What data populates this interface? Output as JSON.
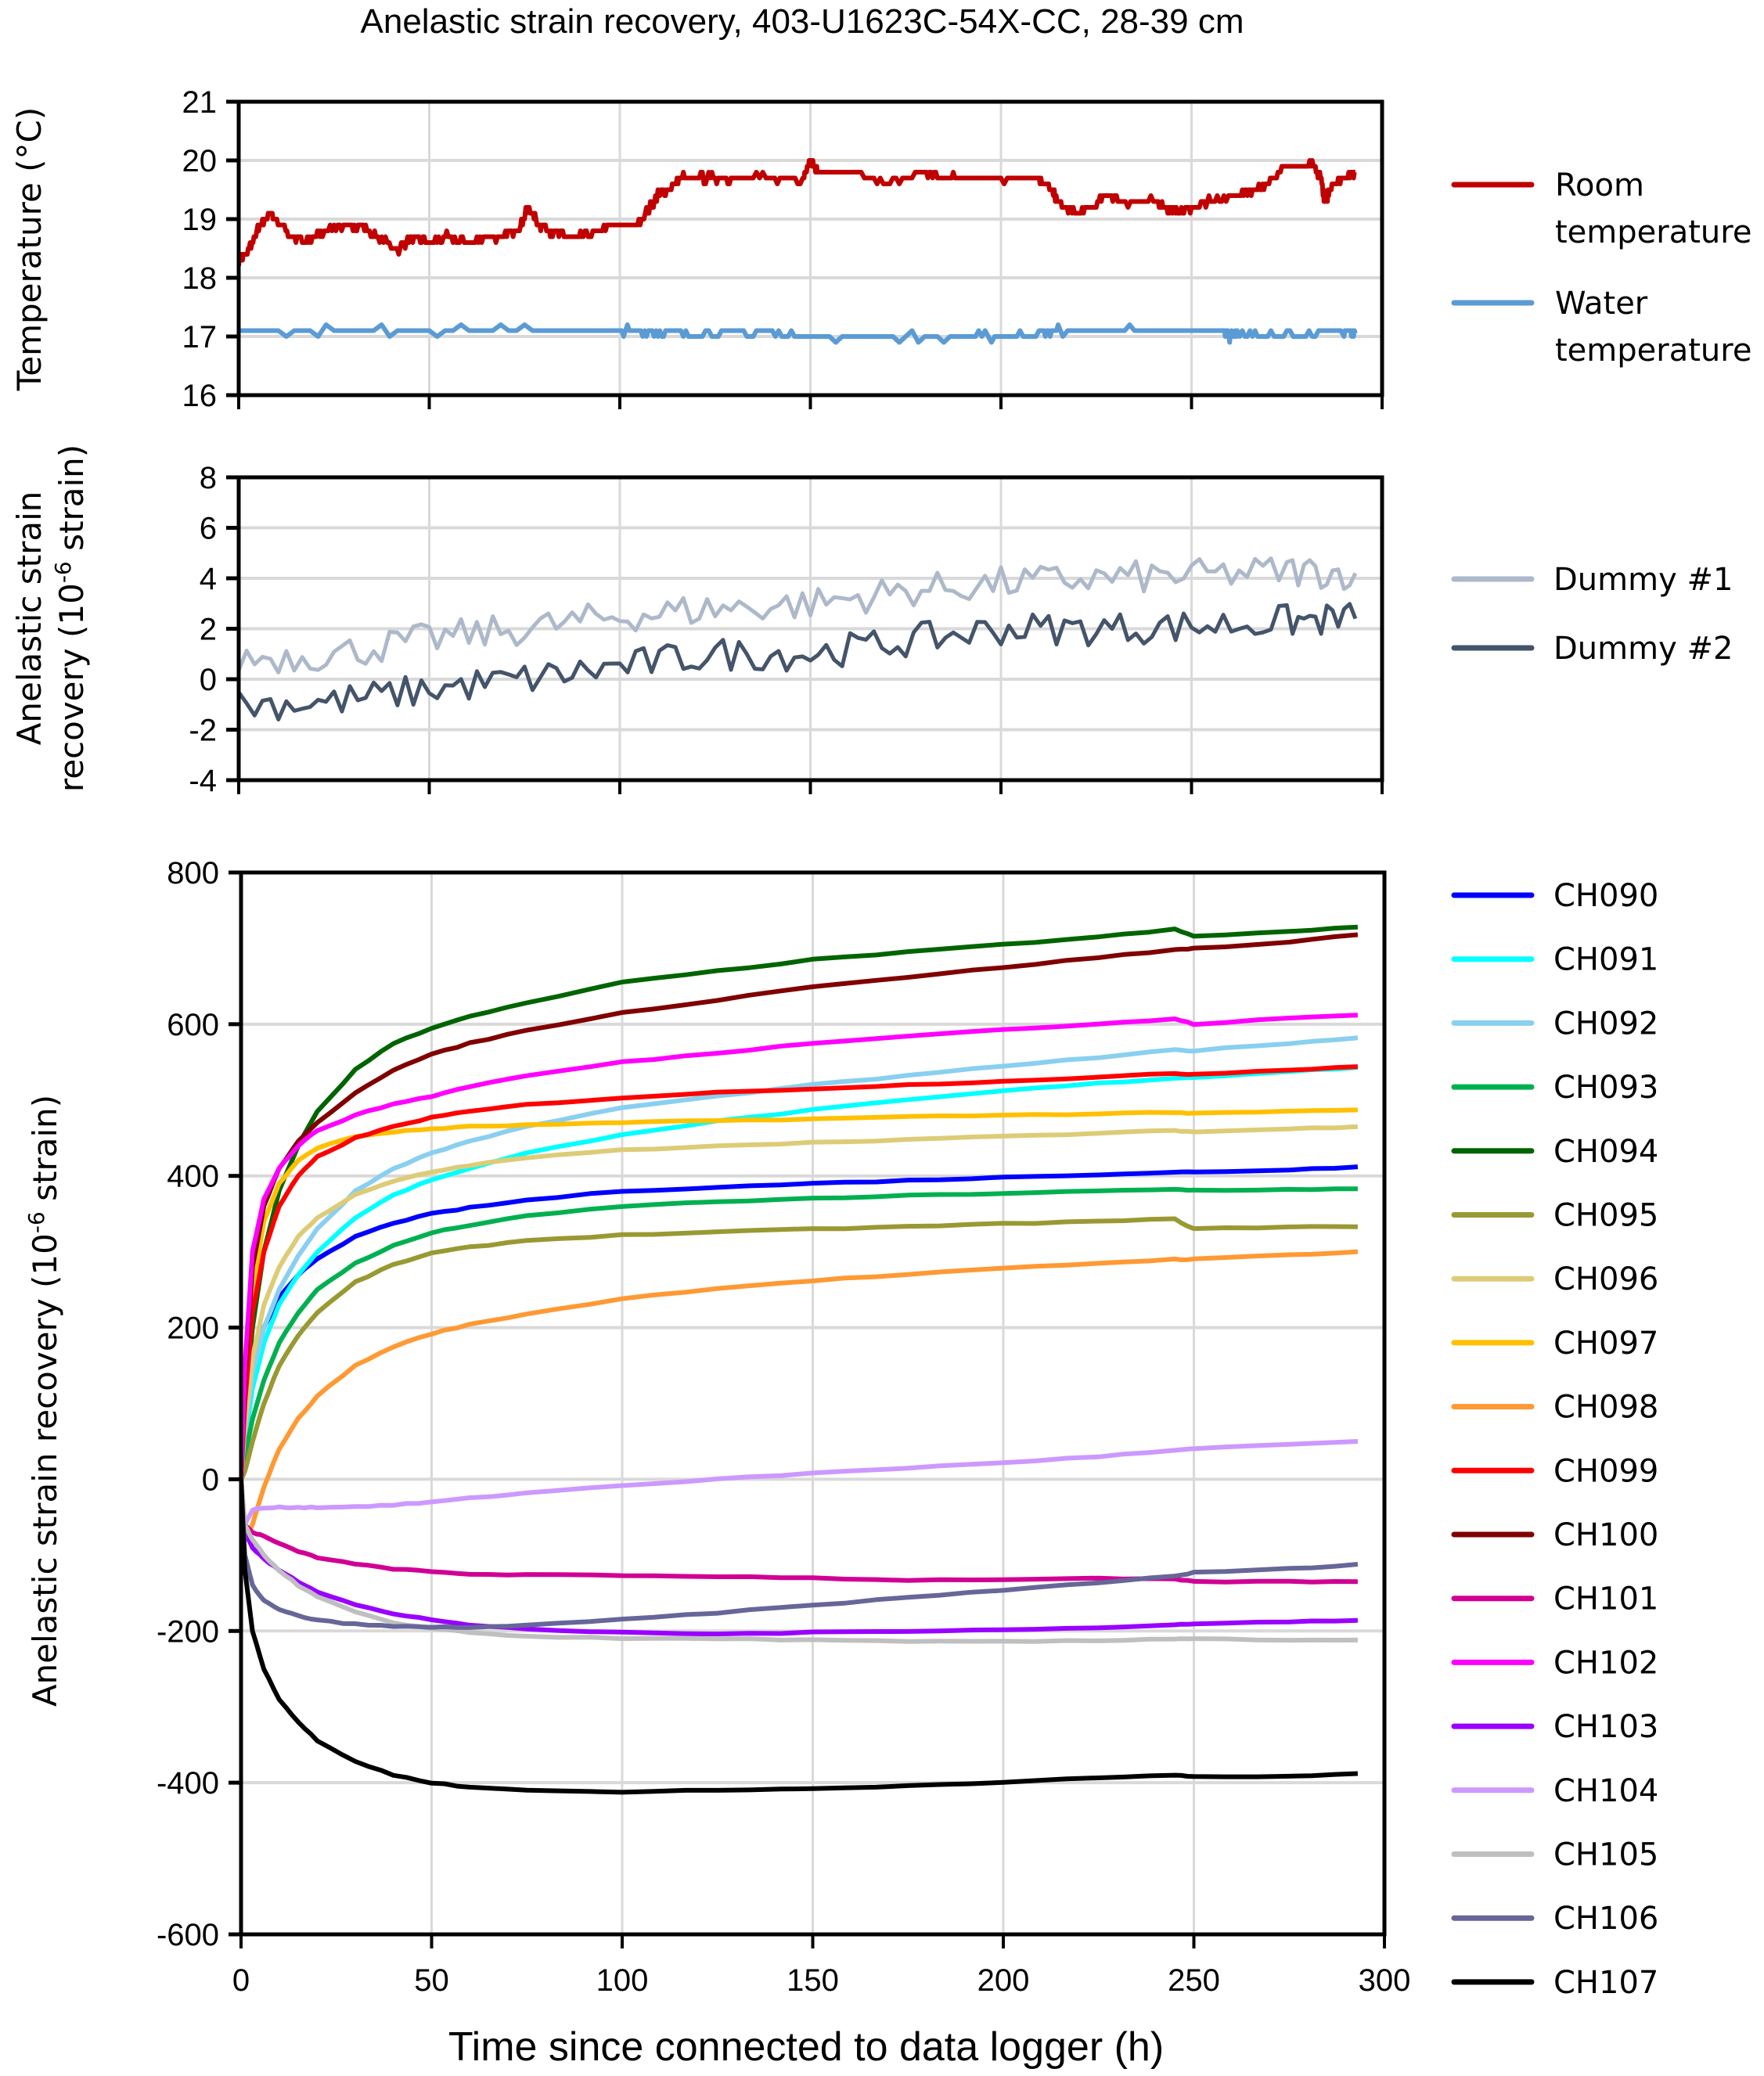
{
  "chart_data": [
    {
      "type": "line",
      "title": "Anelastic strain recovery, 403-U1623C-54X-CC, 28-39 cm",
      "xlabel": "",
      "ylabel": "Temperature (°C)",
      "xlim": [
        0,
        300
      ],
      "ylim": [
        16,
        21
      ],
      "xticks": [
        0,
        50,
        100,
        150,
        200,
        250,
        300
      ],
      "yticks": [
        "16",
        "17",
        "18",
        "19",
        "20",
        "21"
      ],
      "grid": true,
      "legend_position": "right",
      "series": [
        {
          "name": "Room temperature",
          "label_lines": [
            "Room",
            "temperature"
          ],
          "color": "#C00000",
          "x": [
            0,
            2,
            5,
            8,
            10,
            14,
            18,
            22,
            28,
            32,
            36,
            42,
            46,
            50,
            55,
            60,
            65,
            70,
            74,
            76,
            79,
            82,
            86,
            90,
            95,
            100,
            104,
            108,
            110,
            113,
            116,
            120,
            125,
            130,
            140,
            148,
            150,
            152,
            160,
            170,
            180,
            185,
            190,
            200,
            210,
            213,
            216,
            220,
            224,
            228,
            232,
            240,
            243,
            246,
            250,
            255,
            262,
            266,
            270,
            274,
            278,
            282,
            284,
            285,
            287,
            290,
            293
          ],
          "y": [
            18.3,
            18.4,
            18.8,
            19.1,
            19.0,
            18.7,
            18.6,
            18.8,
            18.9,
            18.9,
            18.7,
            18.5,
            18.7,
            18.6,
            18.7,
            18.6,
            18.7,
            18.7,
            18.9,
            19.2,
            18.9,
            18.8,
            18.7,
            18.7,
            18.8,
            18.9,
            18.9,
            19.2,
            19.4,
            19.5,
            19.7,
            19.7,
            19.7,
            19.7,
            19.7,
            19.7,
            20.0,
            19.8,
            19.8,
            19.6,
            19.8,
            19.7,
            19.7,
            19.7,
            19.7,
            19.5,
            19.2,
            19.1,
            19.2,
            19.4,
            19.3,
            19.3,
            19.2,
            19.1,
            19.2,
            19.3,
            19.4,
            19.5,
            19.6,
            19.9,
            19.9,
            19.9,
            19.7,
            19.3,
            19.6,
            19.7,
            19.8
          ]
        },
        {
          "name": "Water temperature",
          "label_lines": [
            "Water",
            "temperature"
          ],
          "color": "#5B9BD5",
          "x": [
            0,
            25,
            50,
            75,
            100,
            106,
            112,
            120,
            130,
            140,
            150,
            170,
            190,
            200,
            210,
            215,
            230,
            245,
            258,
            260,
            262,
            270,
            280,
            290,
            293
          ],
          "y": [
            17.1,
            17.1,
            17.1,
            17.1,
            17.1,
            17.1,
            17.05,
            17.05,
            17.05,
            17.05,
            17.0,
            17.0,
            17.0,
            17.0,
            17.05,
            17.1,
            17.1,
            17.1,
            17.1,
            17.0,
            17.05,
            17.0,
            17.05,
            17.05,
            17.05
          ]
        }
      ]
    },
    {
      "type": "line",
      "xlabel": "",
      "ylabel": "Anelastic strain recovery (10⁻⁶ strain)",
      "ylabel_lines": [
        "Anelastic strain",
        "recovery (10",
        "-6",
        " strain)"
      ],
      "xlim": [
        0,
        300
      ],
      "ylim": [
        -4,
        8
      ],
      "xticks": [
        0,
        50,
        100,
        150,
        200,
        250,
        300
      ],
      "yticks": [
        "-4",
        "-2",
        "0",
        "2",
        "4",
        "6",
        "8"
      ],
      "grid": true,
      "legend_position": "right",
      "series": [
        {
          "name": "Dummy #1",
          "color": "#ADB9CA",
          "x": [
            0,
            25,
            50,
            75,
            100,
            125,
            150,
            175,
            200,
            225,
            250,
            275,
            293
          ],
          "y": [
            0.8,
            1.0,
            1.6,
            2.0,
            2.5,
            2.8,
            3.0,
            3.5,
            3.8,
            4.0,
            4.1,
            4.3,
            4.2
          ]
        },
        {
          "name": "Dummy #2",
          "color": "#44546A",
          "x": [
            0,
            25,
            50,
            75,
            100,
            125,
            150,
            175,
            200,
            225,
            250,
            275,
            293
          ],
          "y": [
            -1.0,
            -0.9,
            -0.4,
            0.0,
            0.5,
            1.0,
            1.0,
            1.5,
            2.0,
            2.0,
            2.1,
            2.3,
            2.4
          ]
        }
      ]
    },
    {
      "type": "line",
      "xlabel": "Time since connected to data logger (h)",
      "ylabel": "Anelastic strain recovery (10⁻⁶ strain)",
      "ylabel_parts": [
        "Anelastic strain recovery (10",
        "-6",
        " strain)"
      ],
      "xlim": [
        0,
        300
      ],
      "ylim": [
        -600,
        800
      ],
      "xticks": [
        "0",
        "50",
        "100",
        "150",
        "200",
        "250",
        "300"
      ],
      "yticks": [
        "-600",
        "-400",
        "-200",
        "0",
        "200",
        "400",
        "600",
        "800"
      ],
      "grid": true,
      "legend_position": "right",
      "x": [
        0,
        1,
        3,
        6,
        10,
        15,
        20,
        30,
        40,
        50,
        60,
        75,
        100,
        125,
        150,
        175,
        200,
        225,
        245,
        250,
        275,
        293
      ],
      "series": [
        {
          "name": "CH090",
          "color": "#0000FF",
          "y": [
            0,
            60,
            140,
            200,
            240,
            270,
            290,
            320,
            338,
            350,
            358,
            368,
            380,
            385,
            390,
            394,
            398,
            402,
            405,
            405,
            408,
            412
          ]
        },
        {
          "name": "CH091",
          "color": "#00FFFF",
          "y": [
            0,
            50,
            120,
            180,
            230,
            270,
            300,
            345,
            375,
            395,
            410,
            430,
            455,
            472,
            487,
            500,
            512,
            522,
            529,
            530,
            538,
            543
          ]
        },
        {
          "name": "CH092",
          "color": "#89CFF0",
          "y": [
            0,
            60,
            140,
            200,
            250,
            295,
            330,
            380,
            410,
            430,
            446,
            465,
            490,
            505,
            520,
            532,
            545,
            556,
            566,
            565,
            575,
            582
          ]
        },
        {
          "name": "CH093",
          "color": "#00B050",
          "y": [
            0,
            30,
            80,
            130,
            180,
            220,
            250,
            285,
            308,
            325,
            335,
            347,
            360,
            366,
            370,
            374,
            377,
            380,
            382,
            381,
            382,
            383
          ]
        },
        {
          "name": "CH094",
          "color": "#006400",
          "y": [
            0,
            90,
            200,
            300,
            380,
            440,
            485,
            540,
            575,
            595,
            610,
            628,
            655,
            670,
            685,
            695,
            705,
            715,
            725,
            716,
            722,
            728
          ]
        },
        {
          "name": "CH095",
          "color": "#999933",
          "y": [
            0,
            10,
            50,
            100,
            150,
            190,
            220,
            260,
            283,
            298,
            306,
            315,
            322,
            326,
            330,
            333,
            337,
            340,
            343,
            330,
            333,
            333
          ]
        },
        {
          "name": "CH096",
          "color": "#DDCC77",
          "y": [
            0,
            70,
            160,
            230,
            280,
            320,
            345,
            375,
            393,
            405,
            414,
            424,
            434,
            440,
            444,
            448,
            452,
            456,
            460,
            458,
            462,
            465
          ]
        },
        {
          "name": "CH097",
          "color": "#FFC000",
          "y": [
            0,
            110,
            250,
            340,
            390,
            420,
            437,
            452,
            458,
            462,
            465,
            467,
            470,
            473,
            475,
            478,
            480,
            482,
            484,
            482,
            485,
            487
          ]
        },
        {
          "name": "CH098",
          "color": "#FF9933",
          "y": [
            0,
            -80,
            -60,
            -10,
            40,
            80,
            110,
            150,
            175,
            192,
            204,
            218,
            238,
            252,
            262,
            270,
            278,
            285,
            290,
            290,
            296,
            300
          ]
        },
        {
          "name": "CH099",
          "color": "#FF0000",
          "y": [
            0,
            100,
            220,
            300,
            360,
            400,
            425,
            450,
            465,
            477,
            485,
            494,
            503,
            510,
            515,
            520,
            525,
            530,
            535,
            534,
            540,
            544
          ]
        },
        {
          "name": "CH100",
          "color": "#800000",
          "y": [
            0,
            130,
            280,
            360,
            410,
            445,
            470,
            510,
            540,
            560,
            575,
            592,
            615,
            632,
            650,
            662,
            675,
            688,
            698,
            700,
            708,
            718
          ]
        },
        {
          "name": "CH101",
          "color": "#D10094",
          "y": [
            0,
            -60,
            -70,
            -75,
            -85,
            -95,
            -103,
            -112,
            -118,
            -122,
            -125,
            -126,
            -127,
            -128,
            -130,
            -133,
            -132,
            -131,
            -132,
            -135,
            -135,
            -135
          ]
        },
        {
          "name": "CH102",
          "color": "#FF00FF",
          "y": [
            0,
            150,
            300,
            370,
            410,
            440,
            460,
            480,
            495,
            505,
            518,
            532,
            550,
            562,
            575,
            585,
            593,
            600,
            607,
            600,
            608,
            612
          ]
        },
        {
          "name": "CH103",
          "color": "#9900FF",
          "y": [
            0,
            -70,
            -90,
            -105,
            -120,
            -135,
            -148,
            -165,
            -178,
            -185,
            -192,
            -198,
            -202,
            -204,
            -202,
            -200,
            -198,
            -196,
            -192,
            -190,
            -188,
            -186
          ]
        },
        {
          "name": "CH104",
          "color": "#CC99FF",
          "y": [
            0,
            -60,
            -40,
            -38,
            -37,
            -37,
            -37,
            -36,
            -34,
            -30,
            -25,
            -18,
            -8,
            0,
            8,
            15,
            22,
            30,
            38,
            40,
            46,
            50
          ]
        },
        {
          "name": "CH105",
          "color": "#BFBFBF",
          "y": [
            0,
            -60,
            -80,
            -100,
            -120,
            -140,
            -155,
            -175,
            -190,
            -196,
            -202,
            -207,
            -210,
            -210,
            -212,
            -214,
            -214,
            -213,
            -210,
            -210,
            -212,
            -212
          ]
        },
        {
          "name": "CH106",
          "color": "#666699",
          "y": [
            0,
            -100,
            -140,
            -160,
            -172,
            -180,
            -186,
            -191,
            -194,
            -195,
            -195,
            -193,
            -185,
            -176,
            -166,
            -156,
            -146,
            -136,
            -128,
            -123,
            -118,
            -112
          ]
        },
        {
          "name": "CH107",
          "color": "#000000",
          "y": [
            0,
            -120,
            -200,
            -250,
            -290,
            -320,
            -345,
            -372,
            -390,
            -400,
            -406,
            -410,
            -412,
            -410,
            -408,
            -404,
            -399,
            -394,
            -390,
            -392,
            -392,
            -388
          ]
        }
      ]
    }
  ]
}
